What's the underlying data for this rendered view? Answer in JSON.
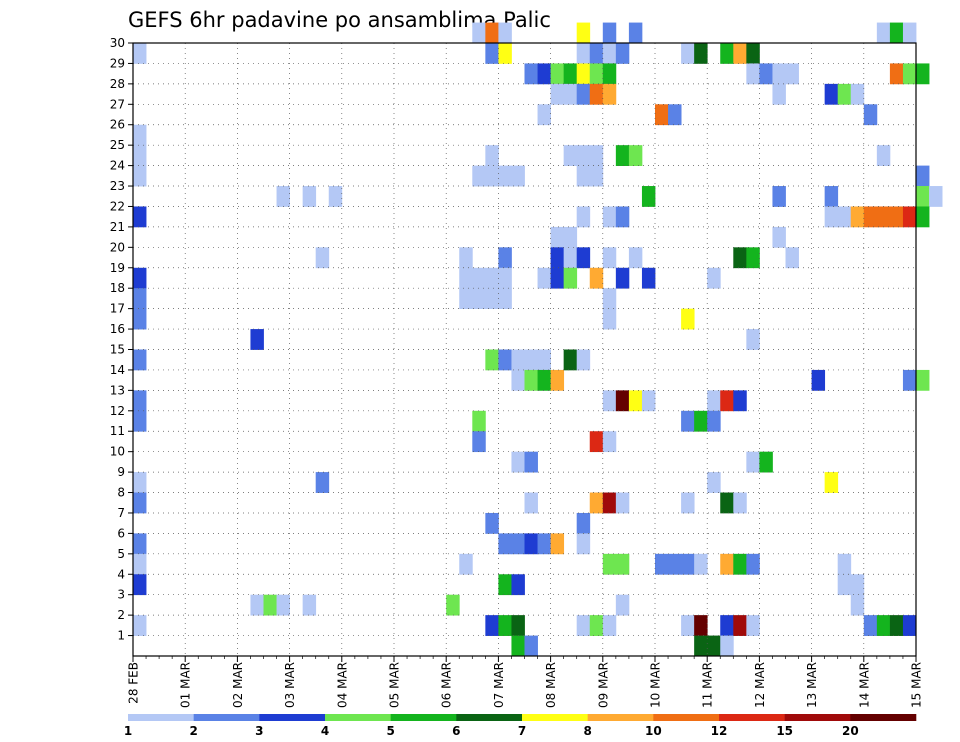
{
  "chart_data": {
    "type": "heatmap",
    "title": "GEFS 6hr padavine po ansamblima Palic",
    "xlabel": "",
    "ylabel": "",
    "x_ticks": [
      "28 FEB",
      "01 MAR",
      "02 MAR",
      "03 MAR",
      "04 MAR",
      "05 MAR",
      "06 MAR",
      "07 MAR",
      "08 MAR",
      "09 MAR",
      "10 MAR",
      "11 MAR",
      "12 MAR",
      "13 MAR",
      "14 MAR",
      "15 MAR"
    ],
    "x_range": [
      "28 FEB",
      "15 MAR"
    ],
    "time_step_hours": 6,
    "y_ticks": [
      1,
      2,
      3,
      4,
      5,
      6,
      7,
      8,
      9,
      10,
      11,
      12,
      13,
      14,
      15,
      16,
      17,
      18,
      19,
      20,
      21,
      22,
      23,
      24,
      25,
      26,
      27,
      28,
      29,
      30
    ],
    "y_range": [
      0,
      30
    ],
    "grid": true,
    "colorbar": {
      "levels": [
        1,
        2,
        3,
        4,
        5,
        6,
        7,
        8,
        10,
        12,
        15,
        20
      ],
      "labels": [
        "1",
        "2",
        "3",
        "4",
        "5",
        "6",
        "7",
        "8",
        "10",
        "12",
        "15",
        "20"
      ],
      "colors": [
        "#b4c8f5",
        "#5a82e6",
        "#1e3cd2",
        "#6ee650",
        "#14b41e",
        "#0a6414",
        "#ffff14",
        "#ffaa32",
        "#f06e14",
        "#dc2814",
        "#a00a0a",
        "#640000"
      ],
      "position": "bottom"
    },
    "cells_format": "[member, time_step_from_28_FEB_00UTC, class_index]",
    "cells": [
      [
        30,
        26,
        0
      ],
      [
        30,
        27,
        8
      ],
      [
        30,
        28,
        0
      ],
      [
        30,
        34,
        6
      ],
      [
        30,
        36,
        1
      ],
      [
        30,
        38,
        1
      ],
      [
        30,
        57,
        0
      ],
      [
        30,
        58,
        4
      ],
      [
        30,
        59,
        0
      ],
      [
        29,
        0,
        0
      ],
      [
        29,
        27,
        1
      ],
      [
        29,
        28,
        6
      ],
      [
        29,
        34,
        0
      ],
      [
        29,
        35,
        1
      ],
      [
        29,
        36,
        0
      ],
      [
        29,
        37,
        1
      ],
      [
        29,
        42,
        0
      ],
      [
        29,
        43,
        5
      ],
      [
        29,
        45,
        4
      ],
      [
        29,
        46,
        7
      ],
      [
        29,
        47,
        5
      ],
      [
        28,
        30,
        1
      ],
      [
        28,
        31,
        2
      ],
      [
        28,
        32,
        3
      ],
      [
        28,
        33,
        4
      ],
      [
        28,
        34,
        6
      ],
      [
        28,
        35,
        3
      ],
      [
        28,
        36,
        4
      ],
      [
        28,
        47,
        0
      ],
      [
        28,
        48,
        1
      ],
      [
        28,
        49,
        0
      ],
      [
        28,
        50,
        0
      ],
      [
        28,
        58,
        8
      ],
      [
        28,
        59,
        3
      ],
      [
        28,
        60,
        4
      ],
      [
        27,
        32,
        0
      ],
      [
        27,
        33,
        0
      ],
      [
        27,
        34,
        1
      ],
      [
        27,
        35,
        8
      ],
      [
        27,
        36,
        7
      ],
      [
        27,
        49,
        0
      ],
      [
        27,
        53,
        2
      ],
      [
        27,
        54,
        3
      ],
      [
        27,
        55,
        0
      ],
      [
        26,
        31,
        0
      ],
      [
        26,
        40,
        8
      ],
      [
        26,
        41,
        1
      ],
      [
        26,
        56,
        1
      ],
      [
        25,
        0,
        0
      ],
      [
        24,
        0,
        0
      ],
      [
        24,
        27,
        0
      ],
      [
        24,
        33,
        0
      ],
      [
        24,
        34,
        0
      ],
      [
        24,
        35,
        0
      ],
      [
        24,
        37,
        4
      ],
      [
        24,
        38,
        3
      ],
      [
        24,
        57,
        0
      ],
      [
        23,
        0,
        0
      ],
      [
        23,
        26,
        0
      ],
      [
        23,
        27,
        0
      ],
      [
        23,
        28,
        0
      ],
      [
        23,
        29,
        0
      ],
      [
        23,
        34,
        0
      ],
      [
        23,
        35,
        0
      ],
      [
        23,
        60,
        1
      ],
      [
        22,
        11,
        0
      ],
      [
        22,
        13,
        0
      ],
      [
        22,
        15,
        0
      ],
      [
        22,
        39,
        4
      ],
      [
        22,
        49,
        1
      ],
      [
        22,
        53,
        1
      ],
      [
        22,
        60,
        3
      ],
      [
        22,
        61,
        0
      ],
      [
        21,
        0,
        2
      ],
      [
        21,
        34,
        0
      ],
      [
        21,
        36,
        0
      ],
      [
        21,
        37,
        1
      ],
      [
        21,
        53,
        0
      ],
      [
        21,
        54,
        0
      ],
      [
        21,
        55,
        7
      ],
      [
        21,
        56,
        8
      ],
      [
        21,
        57,
        8
      ],
      [
        21,
        58,
        8
      ],
      [
        21,
        59,
        9
      ],
      [
        21,
        60,
        4
      ],
      [
        20,
        32,
        0
      ],
      [
        20,
        33,
        0
      ],
      [
        20,
        49,
        0
      ],
      [
        19,
        14,
        0
      ],
      [
        19,
        25,
        0
      ],
      [
        19,
        28,
        1
      ],
      [
        19,
        32,
        2
      ],
      [
        19,
        33,
        0
      ],
      [
        19,
        34,
        2
      ],
      [
        19,
        36,
        0
      ],
      [
        19,
        38,
        0
      ],
      [
        19,
        46,
        5
      ],
      [
        19,
        47,
        4
      ],
      [
        19,
        50,
        0
      ],
      [
        18,
        0,
        2
      ],
      [
        18,
        25,
        0
      ],
      [
        18,
        26,
        0
      ],
      [
        18,
        27,
        0
      ],
      [
        18,
        28,
        0
      ],
      [
        18,
        31,
        0
      ],
      [
        18,
        32,
        2
      ],
      [
        18,
        33,
        3
      ],
      [
        18,
        35,
        7
      ],
      [
        18,
        37,
        2
      ],
      [
        18,
        39,
        2
      ],
      [
        18,
        44,
        0
      ],
      [
        17,
        0,
        1
      ],
      [
        17,
        25,
        0
      ],
      [
        17,
        26,
        0
      ],
      [
        17,
        27,
        0
      ],
      [
        17,
        28,
        0
      ],
      [
        17,
        36,
        0
      ],
      [
        16,
        0,
        1
      ],
      [
        16,
        36,
        0
      ],
      [
        16,
        42,
        6
      ],
      [
        15,
        9,
        2
      ],
      [
        15,
        47,
        0
      ],
      [
        14,
        0,
        1
      ],
      [
        14,
        27,
        3
      ],
      [
        14,
        28,
        1
      ],
      [
        14,
        29,
        0
      ],
      [
        14,
        30,
        0
      ],
      [
        14,
        31,
        0
      ],
      [
        14,
        33,
        5
      ],
      [
        14,
        34,
        0
      ],
      [
        13,
        29,
        0
      ],
      [
        13,
        30,
        3
      ],
      [
        13,
        31,
        4
      ],
      [
        13,
        32,
        7
      ],
      [
        13,
        52,
        2
      ],
      [
        13,
        59,
        1
      ],
      [
        13,
        60,
        3
      ],
      [
        12,
        0,
        1
      ],
      [
        12,
        36,
        0
      ],
      [
        12,
        37,
        11
      ],
      [
        12,
        38,
        6
      ],
      [
        12,
        39,
        0
      ],
      [
        12,
        44,
        0
      ],
      [
        12,
        45,
        9
      ],
      [
        12,
        46,
        2
      ],
      [
        11,
        0,
        1
      ],
      [
        11,
        26,
        3
      ],
      [
        11,
        42,
        1
      ],
      [
        11,
        43,
        4
      ],
      [
        11,
        44,
        1
      ],
      [
        10,
        26,
        1
      ],
      [
        10,
        35,
        9
      ],
      [
        10,
        36,
        0
      ],
      [
        9,
        29,
        0
      ],
      [
        9,
        30,
        1
      ],
      [
        9,
        47,
        0
      ],
      [
        9,
        48,
        4
      ],
      [
        8,
        0,
        0
      ],
      [
        8,
        14,
        1
      ],
      [
        8,
        44,
        0
      ],
      [
        8,
        53,
        6
      ],
      [
        7,
        0,
        1
      ],
      [
        7,
        30,
        0
      ],
      [
        7,
        35,
        7
      ],
      [
        7,
        36,
        10
      ],
      [
        7,
        37,
        0
      ],
      [
        7,
        42,
        0
      ],
      [
        7,
        45,
        5
      ],
      [
        7,
        46,
        0
      ],
      [
        6,
        27,
        1
      ],
      [
        6,
        34,
        1
      ],
      [
        5,
        0,
        1
      ],
      [
        5,
        28,
        1
      ],
      [
        5,
        29,
        1
      ],
      [
        5,
        30,
        2
      ],
      [
        5,
        31,
        1
      ],
      [
        5,
        32,
        7
      ],
      [
        5,
        34,
        0
      ],
      [
        4,
        0,
        0
      ],
      [
        4,
        25,
        0
      ],
      [
        4,
        36,
        3
      ],
      [
        4,
        37,
        3
      ],
      [
        4,
        40,
        1
      ],
      [
        4,
        41,
        1
      ],
      [
        4,
        42,
        1
      ],
      [
        4,
        43,
        0
      ],
      [
        4,
        45,
        7
      ],
      [
        4,
        46,
        4
      ],
      [
        4,
        47,
        1
      ],
      [
        4,
        54,
        0
      ],
      [
        3,
        0,
        2
      ],
      [
        3,
        28,
        4
      ],
      [
        3,
        29,
        2
      ],
      [
        3,
        54,
        0
      ],
      [
        3,
        55,
        0
      ],
      [
        2,
        9,
        0
      ],
      [
        2,
        10,
        3
      ],
      [
        2,
        11,
        0
      ],
      [
        2,
        13,
        0
      ],
      [
        2,
        24,
        3
      ],
      [
        2,
        37,
        0
      ],
      [
        2,
        55,
        0
      ],
      [
        1,
        0,
        0
      ],
      [
        1,
        27,
        2
      ],
      [
        1,
        28,
        4
      ],
      [
        1,
        29,
        5
      ],
      [
        1,
        34,
        0
      ],
      [
        1,
        35,
        3
      ],
      [
        1,
        36,
        0
      ],
      [
        1,
        42,
        0
      ],
      [
        1,
        43,
        11
      ],
      [
        1,
        45,
        2
      ],
      [
        1,
        46,
        10
      ],
      [
        1,
        47,
        0
      ],
      [
        1,
        56,
        1
      ],
      [
        1,
        57,
        4
      ],
      [
        1,
        58,
        5
      ],
      [
        1,
        59,
        2
      ],
      [
        0,
        29,
        4
      ],
      [
        0,
        30,
        1
      ],
      [
        0,
        43,
        5
      ],
      [
        0,
        44,
        5
      ],
      [
        0,
        45,
        0
      ]
    ]
  }
}
